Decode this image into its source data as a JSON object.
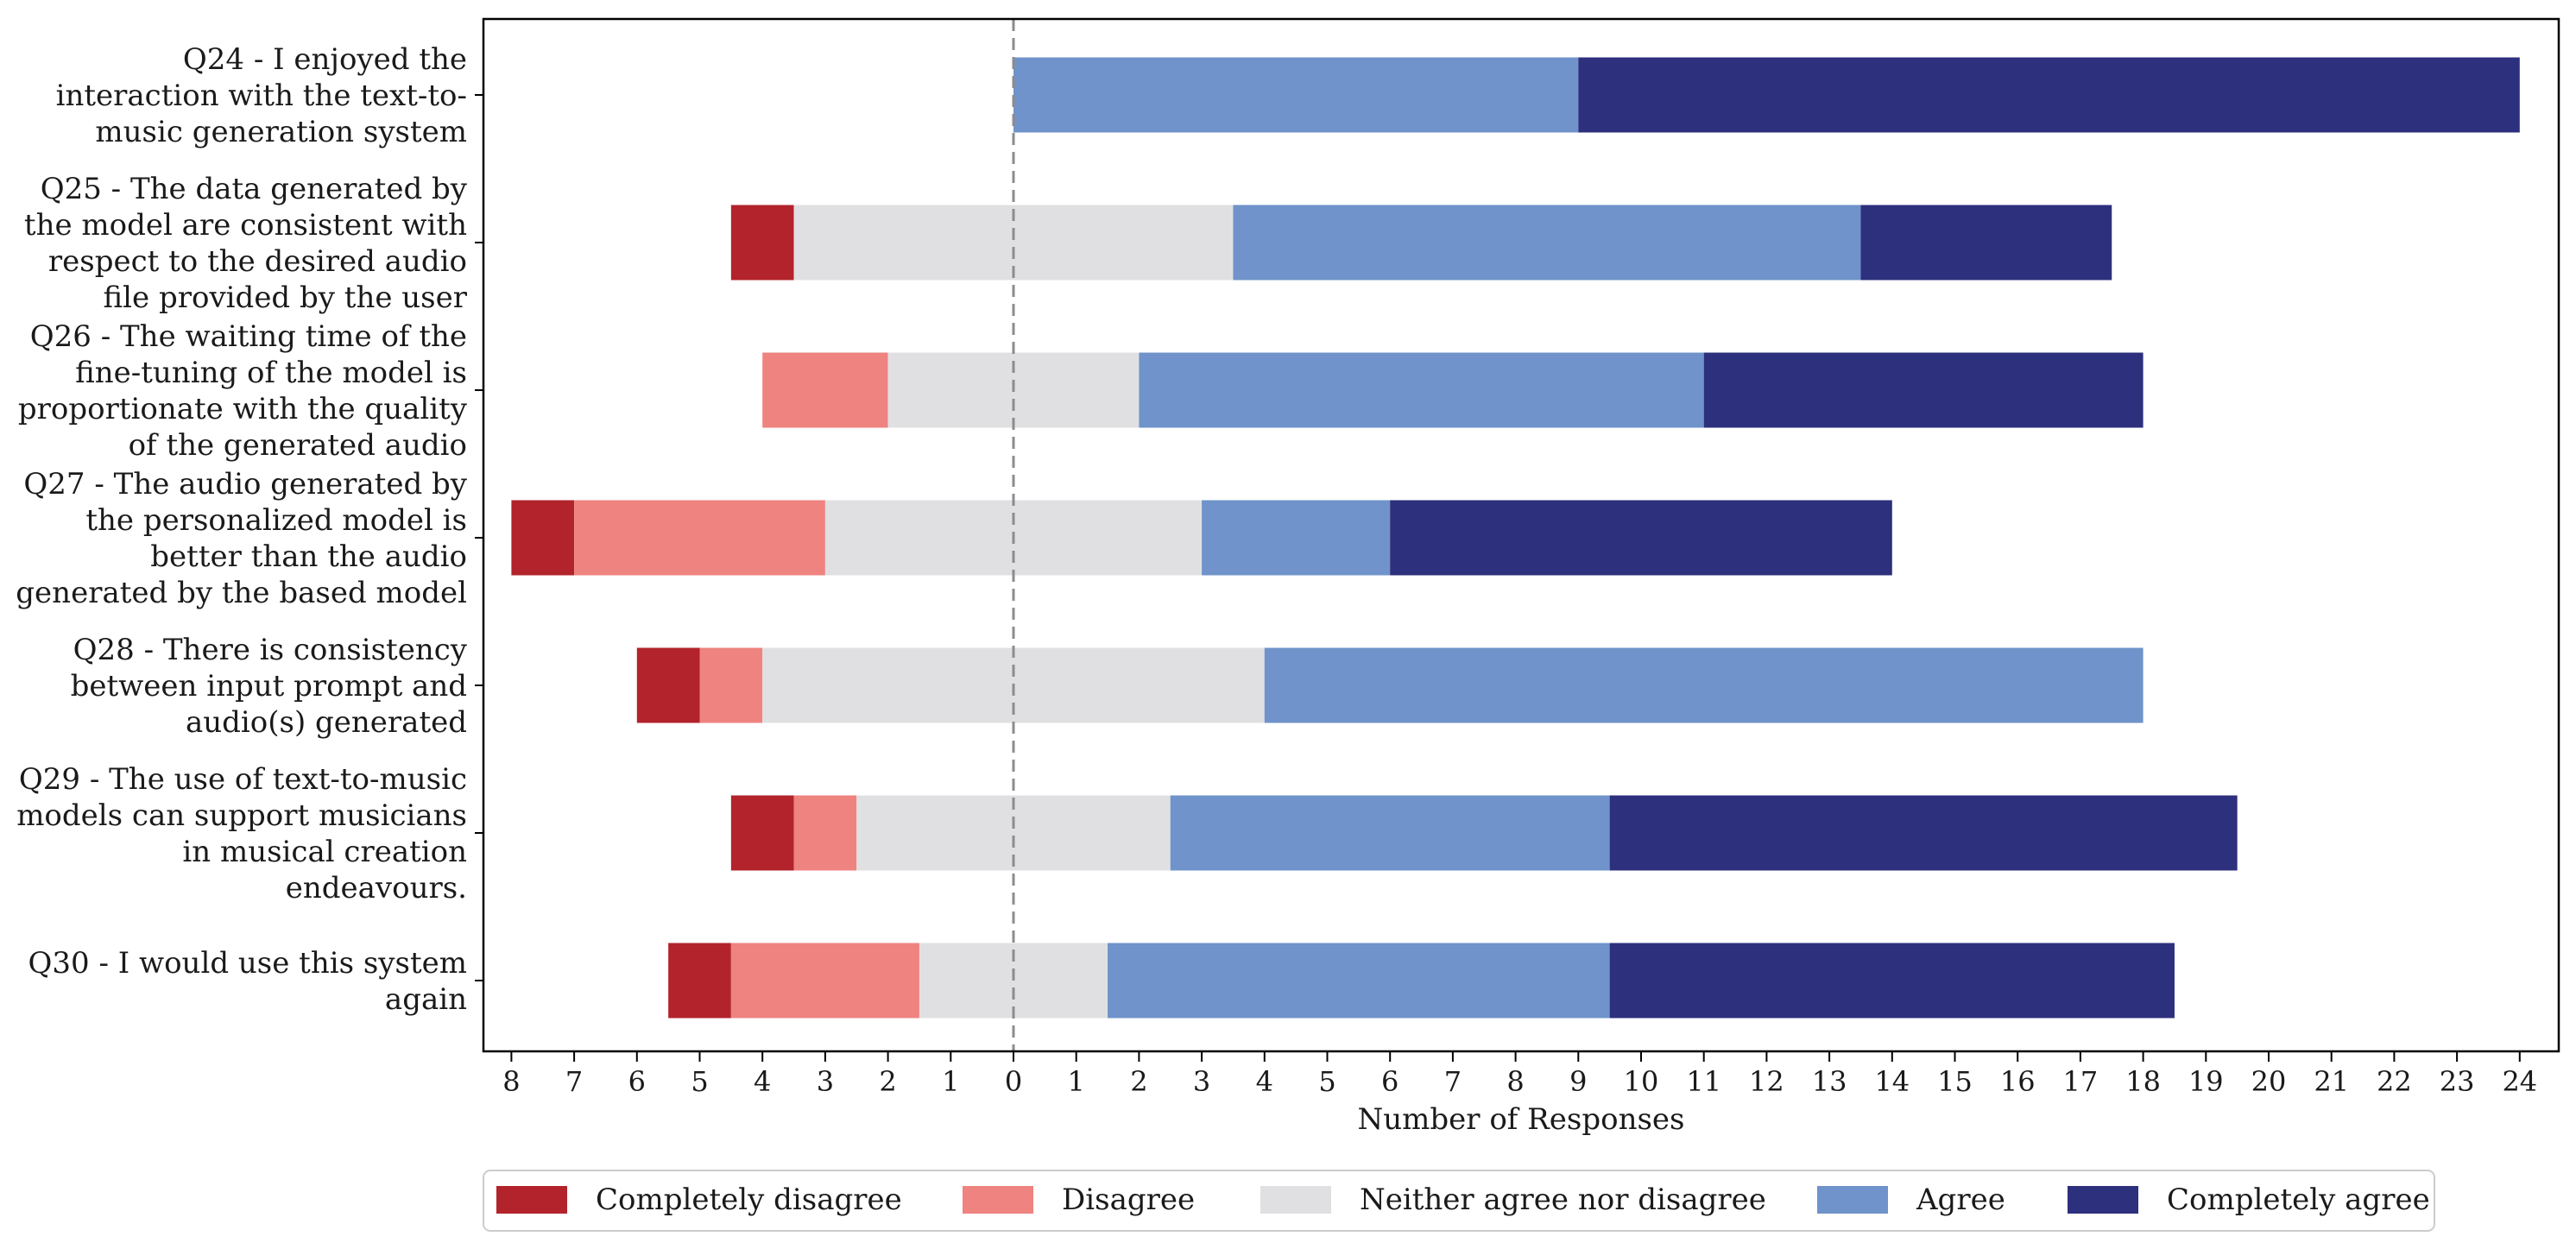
{
  "chart_data": {
    "type": "bar",
    "orientation": "horizontal-diverging-stacked",
    "xlabel": "Number of Responses",
    "xlim": [
      -8.5,
      24.6
    ],
    "x_tick_values": [
      -8,
      -7,
      -6,
      -5,
      -4,
      -3,
      -2,
      -1,
      0,
      1,
      2,
      3,
      4,
      5,
      6,
      7,
      8,
      9,
      10,
      11,
      12,
      13,
      14,
      15,
      16,
      17,
      18,
      19,
      20,
      21,
      22,
      23,
      24
    ],
    "x_tick_labels": [
      "8",
      "7",
      "6",
      "5",
      "4",
      "3",
      "2",
      "1",
      "0",
      "1",
      "2",
      "3",
      "4",
      "5",
      "6",
      "7",
      "8",
      "9",
      "10",
      "11",
      "12",
      "13",
      "14",
      "15",
      "16",
      "17",
      "18",
      "19",
      "20",
      "21",
      "22",
      "23",
      "24"
    ],
    "zero_line": "dashed",
    "legend_position": "bottom-center",
    "categories": [
      [
        "Q24 - I enjoyed the",
        "interaction with the text-to-",
        "music generation system"
      ],
      [
        "Q25 - The data generated by",
        "the model are consistent with",
        "respect to the desired audio",
        "file provided by the user"
      ],
      [
        "Q26 - The waiting time of the",
        "fine-tuning of the model is",
        "proportionate with the quality",
        "of the generated audio"
      ],
      [
        "Q27 - The audio generated by",
        "the personalized model is",
        "better than the audio",
        "generated by the based model"
      ],
      [
        "Q28 - There is consistency",
        "between input prompt and",
        "audio(s) generated"
      ],
      [
        "Q29 - The use of text-to-music",
        "models can support musicians",
        "in musical creation",
        "endeavours."
      ],
      [
        "Q30 - I would use this system",
        "again"
      ]
    ],
    "series": [
      {
        "name": "Completely disagree",
        "color": "#b2232b",
        "values": [
          0,
          1,
          0,
          1,
          1,
          1,
          1
        ]
      },
      {
        "name": "Disagree",
        "color": "#ee8380",
        "values": [
          0,
          0,
          2,
          4,
          1,
          1,
          3
        ]
      },
      {
        "name": "Neither agree nor disagree",
        "color": "#e0e0e3",
        "values": [
          0,
          7,
          4,
          6,
          8,
          5,
          3
        ]
      },
      {
        "name": "Agree",
        "color": "#6f93ca",
        "values": [
          9,
          10,
          9,
          3,
          14,
          7,
          8
        ]
      },
      {
        "name": "Completely agree",
        "color": "#2d307c",
        "values": [
          15,
          4,
          7,
          8,
          0,
          10,
          9
        ]
      }
    ]
  }
}
